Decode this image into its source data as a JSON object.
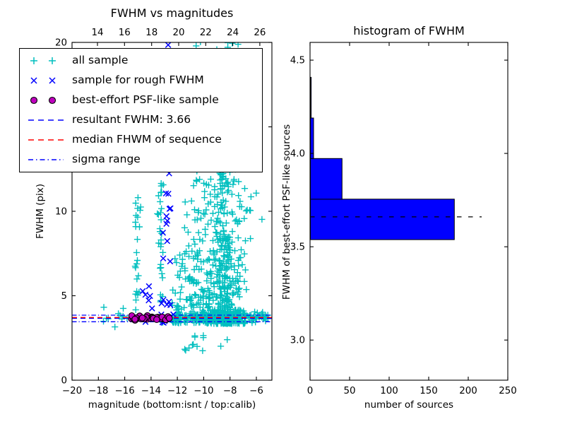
{
  "figure": {
    "background": "#ffffff"
  },
  "colors": {
    "cyan": "#00bfbf",
    "blue": "#0000ff",
    "magenta": "#bf00bf",
    "red": "#ff0000",
    "black": "#000000",
    "hist_fill": "#0000ff"
  },
  "left_plot": {
    "title": "FWHM vs magnitudes",
    "xlabel": "magnitude (bottom:isnt / top:calib)",
    "ylabel": "FWHM (pix)",
    "x_bottom": {
      "lim": [
        -20,
        -4.82
      ],
      "tick_values": [
        -20,
        -18,
        -16,
        -14,
        -12,
        -10,
        -8,
        -6
      ],
      "tick_labels": [
        "−20",
        "−18",
        "−16",
        "−14",
        "−12",
        "−10",
        "−8",
        "−6"
      ]
    },
    "x_top": {
      "lim": [
        12.12,
        26.89
      ],
      "tick_values": [
        14,
        16,
        18,
        20,
        22,
        24,
        26
      ],
      "tick_labels": [
        "14",
        "16",
        "18",
        "20",
        "22",
        "24",
        "26"
      ]
    },
    "y_axis": {
      "lim": [
        0,
        20
      ],
      "tick_values": [
        0,
        5,
        10,
        15,
        20
      ],
      "tick_labels": [
        "0",
        "5",
        "10",
        "15",
        "20"
      ]
    },
    "lines": {
      "resultant_fwhm": 3.66,
      "median_fwhm": 3.71,
      "sigma_range": [
        3.46,
        3.85
      ]
    }
  },
  "right_plot": {
    "title": "histogram of FWHM",
    "xlabel": "number of sources",
    "ylabel": "FWHM of best-effort PSF-like sources",
    "x_axis": {
      "lim": [
        0,
        250
      ],
      "tick_values": [
        0,
        50,
        100,
        150,
        200,
        250
      ],
      "tick_labels": [
        "0",
        "50",
        "100",
        "150",
        "200",
        "250"
      ]
    },
    "y_axis": {
      "lim": [
        2.785,
        4.595
      ],
      "tick_values": [
        3.0,
        3.5,
        4.0,
        4.5
      ],
      "tick_labels": [
        "3.0",
        "3.5",
        "4.0",
        "4.5"
      ]
    }
  },
  "legend": {
    "items": [
      {
        "label": "all sample",
        "marker": "plus",
        "color_key": "cyan"
      },
      {
        "label": "sample for rough FWHM",
        "marker": "x",
        "color_key": "blue"
      },
      {
        "label": "best-effort PSF-like sample",
        "marker": "circle",
        "color_key": "magenta"
      },
      {
        "label": "resultant FWHM: 3.66",
        "marker": "dashed-line",
        "color_key": "blue"
      },
      {
        "label": "median FHWM of sequence",
        "marker": "dashed-line",
        "color_key": "red"
      },
      {
        "label": "sigma range",
        "marker": "dashdot-line",
        "color_key": "blue"
      }
    ]
  },
  "chart_data": [
    {
      "type": "scatter",
      "title": "FWHM vs magnitudes",
      "xlabel": "magnitude (bottom:isnt / top:calib)",
      "ylabel": "FWHM (pix)",
      "xlim": [
        -20,
        -4.82
      ],
      "ylim": [
        0,
        20
      ],
      "grid": false,
      "legend_position": "upper left",
      "hlines": [
        {
          "name": "resultant FWHM",
          "value": 3.66,
          "style": "dashed",
          "color_key": "blue"
        },
        {
          "name": "median FHWM of sequence",
          "value": 3.71,
          "style": "dashed",
          "color_key": "red"
        },
        {
          "name": "sigma range low",
          "value": 3.46,
          "style": "dashdot",
          "color_key": "blue"
        },
        {
          "name": "sigma range high",
          "value": 3.85,
          "style": "dashdot",
          "color_key": "blue"
        }
      ],
      "series": [
        {
          "name": "all sample",
          "marker": "plus",
          "color_key": "cyan",
          "clusters": [
            {
              "n": 420,
              "mag": {
                "dist": "normal",
                "mean": -8.35,
                "sd": 0.8,
                "min": -9.75,
                "max": -6.35
              },
              "fwhm": {
                "dist": "power",
                "base": 3.35,
                "range": 9.0,
                "exp": 2.2
              }
            },
            {
              "n": 140,
              "mag": {
                "dist": "normal",
                "mean": -10.35,
                "sd": 0.55,
                "min": -11.5,
                "max": -9.4
              },
              "fwhm": {
                "dist": "power",
                "base": 3.4,
                "range": 8.6,
                "exp": 2.0
              }
            },
            {
              "n": 70,
              "mag": {
                "dist": "normal",
                "mean": -9.2,
                "sd": 1.15,
                "min": -13.5,
                "max": -6.9
              },
              "fwhm": {
                "dist": "uniform",
                "min": 12.2,
                "max": 20.05
              }
            },
            {
              "n": 190,
              "mag": {
                "dist": "uniform",
                "min": -12.45,
                "max": -5.1
              },
              "fwhm": {
                "dist": "normal",
                "mean": 3.72,
                "sd": 0.17,
                "min": 3.3,
                "max": 4.2
              }
            },
            {
              "n": 26,
              "mag": {
                "dist": "normal",
                "mean": -15.05,
                "sd": 0.13,
                "min": -15.5,
                "max": -14.6
              },
              "fwhm": {
                "dist": "uniform",
                "min": 3.4,
                "max": 11.3
              }
            },
            {
              "n": 30,
              "mag": {
                "dist": "normal",
                "mean": -13.25,
                "sd": 0.13,
                "min": -13.7,
                "max": -12.8
              },
              "fwhm": {
                "dist": "uniform",
                "min": 3.2,
                "max": 12.1
              }
            },
            {
              "n": 11,
              "mag": {
                "dist": "uniform",
                "min": -17.7,
                "max": -15.4
              },
              "fwhm": {
                "dist": "normal",
                "mean": 3.85,
                "sd": 0.4,
                "min": 3.1,
                "max": 4.9
              }
            },
            {
              "n": 13,
              "mag": {
                "dist": "normal",
                "mean": -9.9,
                "sd": 1.1,
                "min": -12.0,
                "max": -7.5
              },
              "fwhm": {
                "dist": "uniform",
                "min": 1.35,
                "max": 2.9
              }
            },
            {
              "n": 45,
              "mag": {
                "dist": "uniform",
                "min": -12.4,
                "max": -11.3
              },
              "fwhm": {
                "dist": "power",
                "base": 3.4,
                "range": 4.6,
                "exp": 2.0
              }
            },
            {
              "n": 7,
              "mag": {
                "dist": "uniform",
                "min": -7.3,
                "max": -5.1
              },
              "fwhm": {
                "dist": "uniform",
                "min": 9.4,
                "max": 11.3
              }
            }
          ]
        },
        {
          "name": "sample for rough FWHM",
          "marker": "x",
          "color_key": "blue",
          "clusters": [
            {
              "n": 16,
              "mag": {
                "dist": "normal",
                "mean": -12.7,
                "sd": 0.18,
                "min": -13.1,
                "max": -12.3
              },
              "fwhm": {
                "dist": "uniform",
                "min": 3.6,
                "max": 12.3
              }
            },
            {
              "n": 13,
              "mag": {
                "dist": "uniform",
                "min": -14.9,
                "max": -12.3
              },
              "fwhm": {
                "dist": "power",
                "base": 3.4,
                "range": 2.4,
                "exp": 1.8
              }
            }
          ],
          "points": [
            [
              -12.7,
              19.85
            ]
          ]
        },
        {
          "name": "best-effort PSF-like sample",
          "marker": "circle",
          "color_key": "magenta",
          "clusters": [
            {
              "n": 38,
              "mag": {
                "dist": "uniform",
                "min": -15.5,
                "max": -12.6
              },
              "fwhm": {
                "dist": "normal",
                "mean": 3.67,
                "sd": 0.07,
                "min": 3.53,
                "max": 3.86
              }
            }
          ]
        }
      ]
    },
    {
      "type": "bar",
      "orientation": "horizontal",
      "title": "histogram of FWHM",
      "xlabel": "number of sources",
      "ylabel": "FWHM of best-effort PSF-like sources",
      "xlim": [
        0,
        250
      ],
      "ylim": [
        2.785,
        4.595
      ],
      "grid": false,
      "bin_edges": [
        3.538,
        3.755,
        3.973,
        4.19,
        4.408
      ],
      "counts": [
        182,
        40,
        4,
        1
      ],
      "fill_color_key": "hist_fill",
      "marker_line": {
        "name": "resultant FWHM",
        "value": 3.66,
        "x_start": 0,
        "x_end": 217,
        "style": "dashed",
        "color_key": "black"
      }
    }
  ]
}
